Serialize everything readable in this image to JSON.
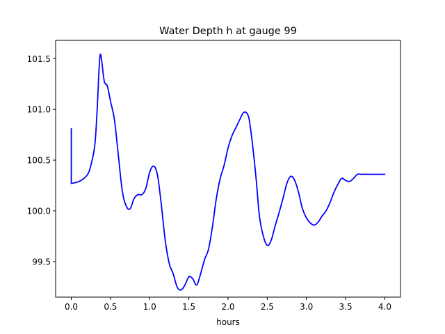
{
  "chart_data": {
    "type": "line",
    "title": "Water Depth h at gauge 99",
    "xlabel": "hours",
    "ylabel": "",
    "xlim": [
      -0.2,
      4.2
    ],
    "ylim": [
      99.15,
      101.68
    ],
    "grid": false,
    "x_ticks": [
      "0.0",
      "0.5",
      "1.0",
      "1.5",
      "2.0",
      "2.5",
      "3.0",
      "3.5",
      "4.0"
    ],
    "y_ticks": [
      "99.5",
      "100.0",
      "100.5",
      "101.0",
      "101.5"
    ],
    "colors": {
      "line": "#0000ff"
    },
    "series": [
      {
        "x": [
          0.0,
          0.0,
          0.1,
          0.2,
          0.25,
          0.3,
          0.33,
          0.36,
          0.38,
          0.42,
          0.46,
          0.5,
          0.55,
          0.6,
          0.65,
          0.7,
          0.75,
          0.8,
          0.85,
          0.9,
          0.95,
          1.0,
          1.05,
          1.1,
          1.15,
          1.2,
          1.25,
          1.3,
          1.35,
          1.4,
          1.45,
          1.5,
          1.55,
          1.6,
          1.65,
          1.7,
          1.75,
          1.8,
          1.85,
          1.9,
          1.95,
          2.0,
          2.05,
          2.1,
          2.15,
          2.2,
          2.25,
          2.28,
          2.32,
          2.36,
          2.4,
          2.45,
          2.5,
          2.55,
          2.6,
          2.65,
          2.7,
          2.75,
          2.8,
          2.85,
          2.9,
          2.95,
          3.0,
          3.05,
          3.1,
          3.15,
          3.2,
          3.25,
          3.3,
          3.35,
          3.4,
          3.45,
          3.5,
          3.55,
          3.6,
          3.65,
          3.7,
          3.75,
          3.8,
          3.85,
          3.9,
          3.95,
          4.0
        ],
        "y": [
          100.81,
          100.27,
          100.29,
          100.35,
          100.45,
          100.65,
          101.0,
          101.47,
          101.52,
          101.28,
          101.23,
          101.08,
          100.9,
          100.55,
          100.2,
          100.05,
          100.02,
          100.12,
          100.16,
          100.16,
          100.22,
          100.38,
          100.44,
          100.35,
          100.05,
          99.7,
          99.48,
          99.38,
          99.25,
          99.22,
          99.27,
          99.35,
          99.33,
          99.27,
          99.38,
          99.52,
          99.62,
          99.84,
          100.12,
          100.32,
          100.45,
          100.62,
          100.74,
          100.82,
          100.9,
          100.97,
          100.95,
          100.85,
          100.6,
          100.3,
          99.95,
          99.75,
          99.66,
          99.71,
          99.85,
          99.98,
          100.12,
          100.27,
          100.34,
          100.3,
          100.18,
          100.02,
          99.93,
          99.88,
          99.86,
          99.89,
          99.95,
          100.0,
          100.08,
          100.18,
          100.26,
          100.32,
          100.3,
          100.29,
          100.32,
          100.36,
          100.36,
          100.36,
          100.36,
          100.36,
          100.36,
          100.36,
          100.36
        ]
      }
    ]
  }
}
